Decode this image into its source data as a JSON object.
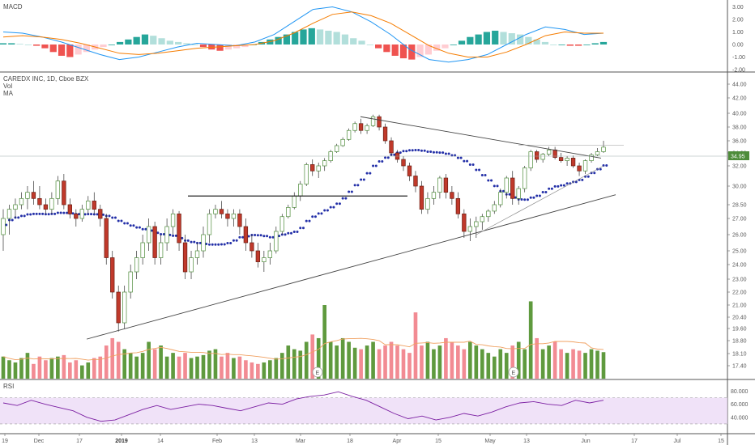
{
  "chart_data": {
    "type": "candlestick",
    "symbol_line": "CAREDX INC, 1D, Cboe BZX",
    "indicators": [
      "Vol",
      "MA"
    ],
    "current_price": "34.95",
    "price_axis": {
      "ticks": [
        "44.00",
        "42.00",
        "40.00",
        "38.00",
        "36.00",
        "34.00",
        "32.00",
        "30.00",
        "28.50",
        "27.00",
        "26.00",
        "25.00",
        "24.00",
        "23.00",
        "22.00",
        "21.00",
        "20.40",
        "19.60",
        "18.80",
        "18.10",
        "17.40"
      ],
      "range": [
        17.4,
        44.0
      ]
    },
    "macd_panel": {
      "title": "MACD",
      "ticks": [
        "3.00",
        "2.00",
        "1.00",
        "0.00",
        "-1.00",
        "-2.00"
      ],
      "range": [
        -2.2,
        3.3
      ]
    },
    "rsi_panel": {
      "title": "RSI",
      "ticks": [
        "80.000",
        "60.000",
        "40.000"
      ],
      "bands": [
        70,
        30
      ],
      "range": [
        25,
        82
      ]
    },
    "x_axis_labels": [
      "19",
      "Dec",
      "17",
      "2019",
      "14",
      "Feb",
      "13",
      "Mar",
      "18",
      "Apr",
      "15",
      "May",
      "13",
      "Jun",
      "17",
      "Jul",
      "15"
    ],
    "earnings_markers": [
      "E",
      "E"
    ],
    "ohlc": [
      [
        26,
        28,
        25,
        27
      ],
      [
        27,
        28.5,
        26,
        28
      ],
      [
        28,
        29,
        27,
        28.5
      ],
      [
        28.5,
        29.5,
        28,
        29
      ],
      [
        29,
        30,
        28,
        29.5
      ],
      [
        29.5,
        30.5,
        28.5,
        29
      ],
      [
        29,
        30,
        28,
        28.5
      ],
      [
        28.5,
        29,
        27.5,
        28
      ],
      [
        28,
        29.5,
        27.5,
        29
      ],
      [
        29,
        31,
        28.5,
        30.5
      ],
      [
        30.5,
        31.2,
        28,
        28.5
      ],
      [
        28.5,
        29,
        27,
        27.5
      ],
      [
        27.5,
        28,
        26.5,
        27
      ],
      [
        27,
        28.5,
        26.8,
        28
      ],
      [
        28,
        29.2,
        27.5,
        28.8
      ],
      [
        28.8,
        29.5,
        27.5,
        28
      ],
      [
        28,
        28.5,
        26.5,
        27
      ],
      [
        27,
        27.5,
        24,
        24.5
      ],
      [
        24.5,
        25,
        21.5,
        22
      ],
      [
        22,
        22.5,
        19.4,
        20
      ],
      [
        20,
        22.5,
        19.6,
        22
      ],
      [
        22,
        24,
        21.5,
        23.5
      ],
      [
        23.5,
        25,
        23,
        24.5
      ],
      [
        24.5,
        26,
        24,
        25.5
      ],
      [
        25.5,
        27,
        25,
        26.5
      ],
      [
        26.5,
        26.8,
        24,
        24.5
      ],
      [
        24.5,
        26,
        24,
        25.5
      ],
      [
        25.5,
        27,
        25,
        26.5
      ],
      [
        26.5,
        28,
        26,
        27.5
      ],
      [
        27.5,
        27.8,
        25,
        25.5
      ],
      [
        25.5,
        26,
        23,
        23.5
      ],
      [
        23.5,
        25,
        23,
        24.5
      ],
      [
        24.5,
        25.5,
        24,
        25
      ],
      [
        25,
        26.5,
        24.5,
        26
      ],
      [
        26,
        28,
        25.5,
        27.5
      ],
      [
        27.5,
        28.5,
        27,
        28
      ],
      [
        28,
        28.8,
        27,
        27.5
      ],
      [
        27.5,
        28,
        26.5,
        27
      ],
      [
        27,
        28,
        26.5,
        27.5
      ],
      [
        27.5,
        28,
        26,
        26.5
      ],
      [
        26.5,
        27,
        25,
        25.5
      ],
      [
        25.5,
        26,
        24.5,
        25
      ],
      [
        25,
        25.5,
        23.8,
        24.2
      ],
      [
        24.2,
        25,
        23.5,
        24.5
      ],
      [
        24.5,
        25.5,
        24,
        25
      ],
      [
        25,
        26.5,
        24.8,
        26.2
      ],
      [
        26.2,
        27.5,
        26,
        27.2
      ],
      [
        27.2,
        28.5,
        27,
        28.2
      ],
      [
        28.2,
        29.5,
        28,
        29.2
      ],
      [
        29.2,
        30.5,
        28.8,
        30.2
      ],
      [
        30.2,
        32.5,
        30,
        32.2
      ],
      [
        32.2,
        33,
        31,
        31.5
      ],
      [
        31.5,
        32.5,
        30.8,
        32
      ],
      [
        32,
        33.2,
        31.5,
        32.8
      ],
      [
        32.8,
        34.5,
        32.5,
        34.2
      ],
      [
        34.2,
        35.5,
        34,
        35.2
      ],
      [
        35.2,
        36.5,
        35,
        36.2
      ],
      [
        36.2,
        37.8,
        36,
        37.5
      ],
      [
        37.5,
        38.8,
        37.2,
        38.5
      ],
      [
        38.5,
        39.2,
        37,
        37.5
      ],
      [
        37.5,
        38.5,
        37,
        38.2
      ],
      [
        38.2,
        39.8,
        38,
        39.5
      ],
      [
        39.5,
        39.8,
        37.5,
        38
      ],
      [
        38,
        38.5,
        35.5,
        36
      ],
      [
        36,
        36.5,
        33.5,
        34
      ],
      [
        34,
        34.5,
        32.5,
        33
      ],
      [
        33,
        33.5,
        31.5,
        32
      ],
      [
        32,
        32.5,
        30.5,
        31
      ],
      [
        31,
        31.5,
        29.5,
        30
      ],
      [
        30,
        30.5,
        27.5,
        28
      ],
      [
        28,
        29.5,
        27.5,
        29
      ],
      [
        29,
        30,
        28.5,
        29.5
      ],
      [
        29.5,
        31,
        29,
        30.8
      ],
      [
        30.8,
        31.2,
        29,
        29.5
      ],
      [
        29.5,
        30,
        28.5,
        29
      ],
      [
        29,
        29.5,
        27,
        27.5
      ],
      [
        27.5,
        28,
        25.8,
        26.2
      ],
      [
        26.2,
        27,
        25.6,
        26.5
      ],
      [
        26.5,
        27.2,
        25.8,
        26.8
      ],
      [
        26.8,
        27.5,
        26.3,
        27.2
      ],
      [
        27.2,
        28,
        26.8,
        27.8
      ],
      [
        27.8,
        28.8,
        27.5,
        28.5
      ],
      [
        28.5,
        29.8,
        28.2,
        29.5
      ],
      [
        29.5,
        31,
        29,
        30.8
      ],
      [
        30.8,
        31.5,
        28.5,
        29
      ],
      [
        29,
        30,
        28.5,
        29.8
      ],
      [
        29.8,
        32,
        29.5,
        31.8
      ],
      [
        31.8,
        34.5,
        31.5,
        34.2
      ],
      [
        34.2,
        34.5,
        32.5,
        33
      ],
      [
        33,
        34,
        32.5,
        33.8
      ],
      [
        33.8,
        35,
        33.5,
        34.5
      ],
      [
        34.5,
        35,
        33,
        33.3
      ],
      [
        33.3,
        34,
        32.5,
        32.8
      ],
      [
        32.8,
        33.5,
        32,
        33.2
      ],
      [
        33.2,
        33.6,
        31.8,
        32
      ],
      [
        32,
        32.5,
        31,
        31.5
      ],
      [
        31.5,
        33,
        31.2,
        32.8
      ],
      [
        32.8,
        34,
        32.5,
        33.7
      ],
      [
        33.7,
        34.8,
        33.5,
        34.2
      ],
      [
        34.2,
        36,
        34,
        34.95
      ]
    ],
    "volume": [
      0.3,
      0.25,
      0.22,
      0.28,
      0.35,
      0.2,
      0.3,
      0.25,
      0.28,
      0.3,
      0.32,
      0.22,
      0.25,
      0.18,
      0.22,
      0.28,
      0.3,
      0.45,
      0.55,
      0.5,
      0.4,
      0.35,
      0.3,
      0.35,
      0.5,
      0.4,
      0.45,
      0.3,
      0.35,
      0.3,
      0.35,
      0.28,
      0.3,
      0.32,
      0.38,
      0.4,
      0.3,
      0.35,
      0.28,
      0.3,
      0.25,
      0.22,
      0.2,
      0.22,
      0.25,
      0.28,
      0.35,
      0.45,
      0.4,
      0.38,
      0.5,
      0.6,
      0.55,
      1.0,
      0.5,
      0.45,
      0.55,
      0.5,
      0.42,
      0.4,
      0.45,
      0.5,
      0.4,
      0.45,
      0.5,
      0.45,
      0.4,
      0.35,
      0.9,
      0.45,
      0.5,
      0.4,
      0.45,
      0.55,
      0.5,
      0.45,
      0.4,
      0.5,
      0.45,
      0.4,
      0.35,
      0.3,
      0.4,
      0.35,
      0.45,
      0.5,
      0.4,
      1.05,
      0.55,
      0.4,
      0.45,
      0.5,
      0.4,
      0.35,
      0.4,
      0.38,
      0.35,
      0.4,
      0.38,
      0.36
    ],
    "macd_hist": [
      0.1,
      0.1,
      0.05,
      0,
      -0.1,
      -0.3,
      -0.6,
      -0.9,
      -1,
      -0.8,
      -0.6,
      -0.4,
      -0.2,
      0,
      0.2,
      0.4,
      0.6,
      0.8,
      0.7,
      0.5,
      0.3,
      0.2,
      0.1,
      0,
      -0.2,
      -0.4,
      -0.5,
      -0.4,
      -0.3,
      -0.2,
      0,
      0.2,
      0.4,
      0.6,
      0.8,
      1,
      1.2,
      1.3,
      1.2,
      1.1,
      1,
      0.8,
      0.5,
      0.3,
      0,
      -0.3,
      -0.6,
      -0.9,
      -1.1,
      -1.2,
      -1,
      -0.8,
      -0.5,
      -0.3,
      0,
      0.3,
      0.6,
      0.8,
      1,
      1.1,
      1,
      0.9,
      0.8,
      0.6,
      0.4,
      0.2,
      0,
      0,
      -0.1,
      -0.1,
      0,
      0.1,
      0.2
    ],
    "macd_line": [
      1.0,
      0.9,
      0.6,
      0.2,
      -0.3,
      -0.8,
      -1.2,
      -1.0,
      -0.6,
      -0.2,
      0.1,
      0.0,
      -0.1,
      0.2,
      0.8,
      1.8,
      2.8,
      3.0,
      2.6,
      1.8,
      0.8,
      -0.4,
      -1.2,
      -1.4,
      -1.2,
      -0.8,
      0.0,
      0.8,
      1.4,
      1.2,
      0.8,
      0.9
    ],
    "signal_line": [
      0.6,
      0.7,
      0.6,
      0.4,
      0.1,
      -0.3,
      -0.7,
      -0.8,
      -0.7,
      -0.5,
      -0.3,
      -0.2,
      -0.1,
      0.0,
      0.3,
      0.9,
      1.7,
      2.4,
      2.6,
      2.3,
      1.7,
      0.8,
      -0.1,
      -0.7,
      -1.0,
      -1.0,
      -0.6,
      0.0,
      0.7,
      1.0,
      0.9,
      0.9
    ],
    "rsi": [
      62,
      58,
      66,
      60,
      55,
      50,
      40,
      34,
      36,
      44,
      52,
      58,
      52,
      56,
      60,
      58,
      54,
      50,
      56,
      62,
      60,
      68,
      72,
      74,
      79,
      72,
      66,
      56,
      46,
      38,
      42,
      36,
      40,
      46,
      42,
      48,
      56,
      62,
      64,
      60,
      58,
      66,
      62,
      66
    ],
    "colors": {
      "up": "#4e8c3a",
      "down": "#c0392b",
      "vol_up": "#5f9a3e",
      "vol_down": "#f28b93",
      "ma": "#2430a8",
      "macd": "#2196f3",
      "signal": "#f57c00",
      "hist_up": "#26a69a",
      "hist_down": "#ef5350",
      "rsi": "#7b1fa2",
      "rsi_fill": "#ead6f5"
    }
  }
}
